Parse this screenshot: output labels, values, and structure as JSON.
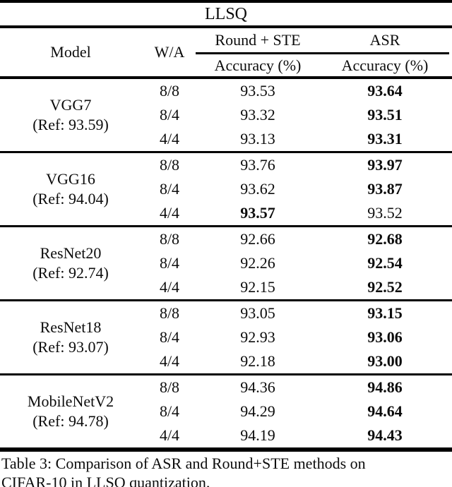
{
  "table": {
    "title": "LLSQ",
    "header": {
      "model": "Model",
      "wa": "W/A",
      "round_ste": "Round + STE",
      "asr": "ASR",
      "accuracy": "Accuracy (%)"
    },
    "groups": [
      {
        "model": "VGG7",
        "ref": "(Ref: 93.59)",
        "rows": [
          {
            "wa": "8/8",
            "round_ste": "93.53",
            "asr": "93.64",
            "round_ste_bold": false,
            "asr_bold": true
          },
          {
            "wa": "8/4",
            "round_ste": "93.32",
            "asr": "93.51",
            "round_ste_bold": false,
            "asr_bold": true
          },
          {
            "wa": "4/4",
            "round_ste": "93.13",
            "asr": "93.31",
            "round_ste_bold": false,
            "asr_bold": true
          }
        ]
      },
      {
        "model": "VGG16",
        "ref": "(Ref: 94.04)",
        "rows": [
          {
            "wa": "8/8",
            "round_ste": "93.76",
            "asr": "93.97",
            "round_ste_bold": false,
            "asr_bold": true
          },
          {
            "wa": "8/4",
            "round_ste": "93.62",
            "asr": "93.87",
            "round_ste_bold": false,
            "asr_bold": true
          },
          {
            "wa": "4/4",
            "round_ste": "93.57",
            "asr": "93.52",
            "round_ste_bold": true,
            "asr_bold": false
          }
        ]
      },
      {
        "model": "ResNet20",
        "ref": "(Ref: 92.74)",
        "rows": [
          {
            "wa": "8/8",
            "round_ste": "92.66",
            "asr": "92.68",
            "round_ste_bold": false,
            "asr_bold": true
          },
          {
            "wa": "8/4",
            "round_ste": "92.26",
            "asr": "92.54",
            "round_ste_bold": false,
            "asr_bold": true
          },
          {
            "wa": "4/4",
            "round_ste": "92.15",
            "asr": "92.52",
            "round_ste_bold": false,
            "asr_bold": true
          }
        ]
      },
      {
        "model": "ResNet18",
        "ref": "(Ref: 93.07)",
        "rows": [
          {
            "wa": "8/8",
            "round_ste": "93.05",
            "asr": "93.15",
            "round_ste_bold": false,
            "asr_bold": true
          },
          {
            "wa": "8/4",
            "round_ste": "92.93",
            "asr": "93.06",
            "round_ste_bold": false,
            "asr_bold": true
          },
          {
            "wa": "4/4",
            "round_ste": "92.18",
            "asr": "93.00",
            "round_ste_bold": false,
            "asr_bold": true
          }
        ]
      },
      {
        "model": "MobileNetV2",
        "ref": "(Ref: 94.78)",
        "rows": [
          {
            "wa": "8/8",
            "round_ste": "94.36",
            "asr": "94.86",
            "round_ste_bold": false,
            "asr_bold": true
          },
          {
            "wa": "8/4",
            "round_ste": "94.29",
            "asr": "94.64",
            "round_ste_bold": false,
            "asr_bold": true
          },
          {
            "wa": "4/4",
            "round_ste": "94.19",
            "asr": "94.43",
            "round_ste_bold": false,
            "asr_bold": true
          }
        ]
      }
    ]
  },
  "caption": {
    "line1": "Table 3: Comparison of ASR and Round+STE methods on",
    "line2": "CIFAR-10 in LLSQ quantization."
  }
}
